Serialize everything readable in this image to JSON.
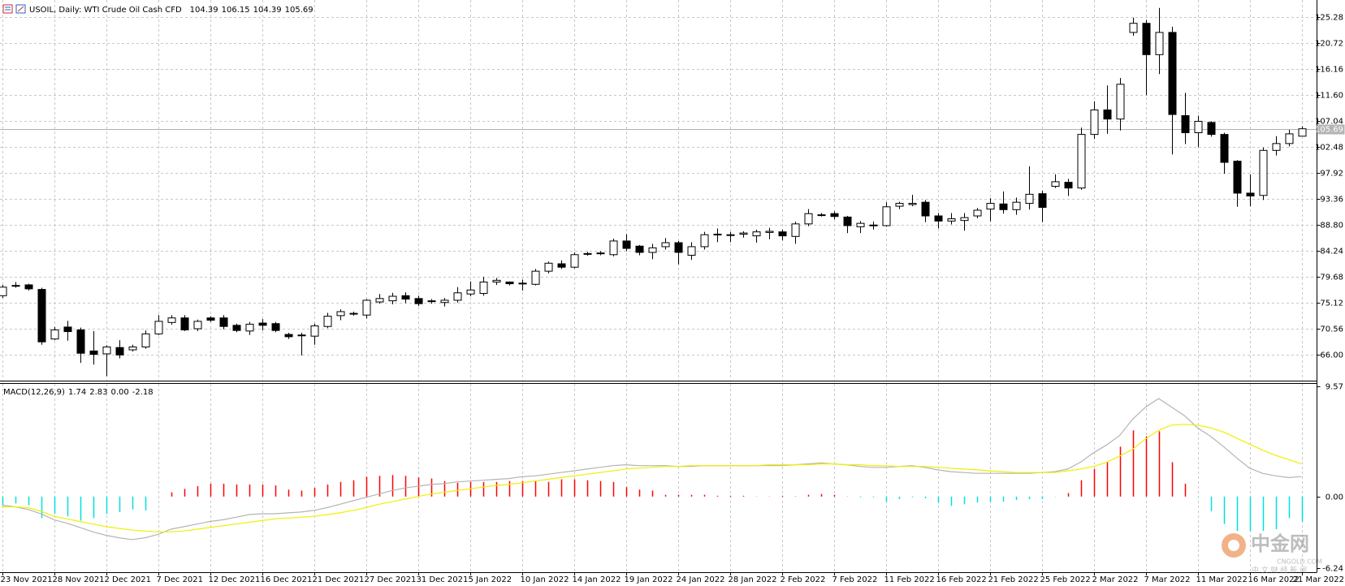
{
  "chart_data": [
    {
      "type": "candlestick",
      "title": "USOIL, Daily: WTI Crude Oil Cash CFD",
      "categories": [
        "23 Nov 2021",
        null,
        null,
        null,
        "28 Nov 2021",
        null,
        null,
        null,
        "2 Dec 2021",
        null,
        null,
        null,
        "7 Dec 2021",
        null,
        null,
        null,
        "12 Dec 2021",
        null,
        null,
        null,
        "16 Dec 2021",
        null,
        null,
        null,
        "21 Dec 2021",
        null,
        null,
        null,
        "27 Dec 2021",
        null,
        null,
        null,
        "31 Dec 2021",
        null,
        null,
        null,
        "5 Jan 2022",
        null,
        null,
        null,
        "10 Jan 2022",
        null,
        null,
        null,
        "14 Jan 2022",
        null,
        null,
        null,
        "19 Jan 2022",
        null,
        null,
        null,
        "24 Jan 2022",
        null,
        null,
        null,
        "28 Jan 2022",
        null,
        null,
        null,
        "2 Feb 2022",
        null,
        null,
        null,
        "7 Feb 2022",
        null,
        null,
        null,
        "11 Feb 2022",
        null,
        null,
        null,
        "16 Feb 2022",
        null,
        null,
        null,
        "21 Feb 2022",
        null,
        null,
        null,
        "25 Feb 2022",
        null,
        null,
        null,
        "2 Mar 2022",
        null,
        null,
        null,
        "7 Mar 2022",
        null,
        null,
        null,
        "11 Mar 2022",
        null,
        null,
        null,
        "16 Mar 2022",
        null,
        null,
        null,
        "21 Mar 2022"
      ],
      "open": [
        76.4,
        78.1,
        78.3,
        77.5,
        68.8,
        70.9,
        70.4,
        66.7,
        66.2,
        67.3,
        66.9,
        67.4,
        69.7,
        71.7,
        72.5,
        70.6,
        72.5,
        72.5,
        71.2,
        70.2,
        71.6,
        71.5,
        69.6,
        69.4,
        69.3,
        71.0,
        72.9,
        73.2,
        73.0,
        75.3,
        75.5,
        76.4,
        75.9,
        75.5,
        75.2,
        75.6,
        76.7,
        76.8,
        78.8,
        78.8,
        78.5,
        78.4,
        80.7,
        82.0,
        81.4,
        83.7,
        83.8,
        83.6,
        86.0,
        85.1,
        84.0,
        85.0,
        85.7,
        83.5,
        85.0,
        87.1,
        87.0,
        87.2,
        86.9,
        87.5,
        87.6,
        86.8,
        89.0,
        90.5,
        90.8,
        90.2,
        88.5,
        88.7,
        88.7,
        92.1,
        92.4,
        92.8,
        90.4,
        89.5,
        89.6,
        90.4,
        91.6,
        92.5,
        91.5,
        92.6,
        94.3,
        95.6,
        96.3,
        95.3,
        104.7,
        109.0,
        107.4,
        122.6,
        124.2,
        118.7,
        122.6,
        108.0,
        105.0,
        106.8,
        104.7,
        100.0,
        94.4,
        94.0,
        101.9,
        103.1,
        104.39
      ],
      "high": [
        78.3,
        78.8,
        78.5,
        77.8,
        70.9,
        72.0,
        70.8,
        70.2,
        67.7,
        68.6,
        67.8,
        70.3,
        73.0,
        73.0,
        73.0,
        72.2,
        72.8,
        73.0,
        71.5,
        71.8,
        72.3,
        71.8,
        69.9,
        69.9,
        71.5,
        73.4,
        74.0,
        73.6,
        75.8,
        76.7,
        76.9,
        77.0,
        76.4,
        75.8,
        76.0,
        77.9,
        78.9,
        79.7,
        79.5,
        78.9,
        79.2,
        81.1,
        82.4,
        82.6,
        84.0,
        84.1,
        84.2,
        86.4,
        87.2,
        85.3,
        85.5,
        86.5,
        86.0,
        85.8,
        87.6,
        88.2,
        87.6,
        87.7,
        88.0,
        88.3,
        88.0,
        89.4,
        91.6,
        90.9,
        91.2,
        90.4,
        89.5,
        89.4,
        92.8,
        92.9,
        94.1,
        93.2,
        90.9,
        90.9,
        90.9,
        91.8,
        93.5,
        94.7,
        93.6,
        99.1,
        94.8,
        97.7,
        96.9,
        105.9,
        110.5,
        113.3,
        114.6,
        125.2,
        124.8,
        126.9,
        123.6,
        112.0,
        108.0,
        107.0,
        105.0,
        100.2,
        97.7,
        102.4,
        104.4,
        105.5,
        106.15
      ],
      "low": [
        76.0,
        77.8,
        77.3,
        67.8,
        68.6,
        68.5,
        64.6,
        64.3,
        62.3,
        65.4,
        66.6,
        67.1,
        69.5,
        71.3,
        70.2,
        70.2,
        71.8,
        70.5,
        70.0,
        69.5,
        70.3,
        70.0,
        68.8,
        65.9,
        67.8,
        70.7,
        72.1,
        72.9,
        72.4,
        75.0,
        74.9,
        75.1,
        74.6,
        75.0,
        74.5,
        75.2,
        76.3,
        76.4,
        78.3,
        78.2,
        77.3,
        78.2,
        80.3,
        81.1,
        81.2,
        83.4,
        83.5,
        83.3,
        84.2,
        83.5,
        82.8,
        84.5,
        81.9,
        82.7,
        84.5,
        85.8,
        85.8,
        86.6,
        85.7,
        86.3,
        86.1,
        85.5,
        88.6,
        90.3,
        89.8,
        87.4,
        87.4,
        88.0,
        88.5,
        91.6,
        92.1,
        89.3,
        88.2,
        88.9,
        87.8,
        90.0,
        89.4,
        90.8,
        90.6,
        91.5,
        89.3,
        95.3,
        93.9,
        95.0,
        103.9,
        104.8,
        105.4,
        122.0,
        111.6,
        115.3,
        101.2,
        103.0,
        102.5,
        104.3,
        97.8,
        92.0,
        92.1,
        93.2,
        101.0,
        102.6,
        104.39
      ],
      "close": [
        77.9,
        78.2,
        77.6,
        68.3,
        70.4,
        70.1,
        66.3,
        66.1,
        67.4,
        66.0,
        67.4,
        69.7,
        71.9,
        72.5,
        70.4,
        71.9,
        72.1,
        71.0,
        70.3,
        71.4,
        71.2,
        70.3,
        69.2,
        69.5,
        71.1,
        72.8,
        73.6,
        73.3,
        75.6,
        75.9,
        76.3,
        75.8,
        75.0,
        75.4,
        75.6,
        76.9,
        77.4,
        78.8,
        79.1,
        78.5,
        78.6,
        80.7,
        82.1,
        81.4,
        83.6,
        83.8,
        83.9,
        86.0,
        84.7,
        84.0,
        84.8,
        85.7,
        84.0,
        85.0,
        87.1,
        87.2,
        87.1,
        87.4,
        87.6,
        87.7,
        86.9,
        89.0,
        90.8,
        90.6,
        90.3,
        88.7,
        89.1,
        88.8,
        92.0,
        92.6,
        92.6,
        90.4,
        89.5,
        89.9,
        90.1,
        91.4,
        92.6,
        91.5,
        92.8,
        94.2,
        91.9,
        96.4,
        95.3,
        104.7,
        109.0,
        107.4,
        113.5,
        124.2,
        118.7,
        122.6,
        108.2,
        105.0,
        107.0,
        104.7,
        99.8,
        94.4,
        93.9,
        101.9,
        103.1,
        104.8,
        105.69
      ],
      "up_color": "#ffffff",
      "down_color": "#000000",
      "outline_color": "#000000",
      "ylim": [
        61.49,
        128.29
      ],
      "yticks": [
        {
          "value": 66,
          "label": "66.00"
        },
        70.56,
        75.12,
        79.68,
        84.24,
        {
          "value": 88.8,
          "label": "88.80"
        },
        93.36,
        97.92,
        102.48,
        107.04,
        {
          "value": 111.6,
          "label": "111.60"
        },
        116.16,
        120.72,
        125.28
      ],
      "grid": true,
      "last_price_line": true
    },
    {
      "type": "macd",
      "title": "MACD(12,26,9)",
      "readout": [
        "1.74",
        "2.83",
        "0.00",
        "-2.18"
      ],
      "ylim": [
        -6.58,
        9.87
      ],
      "yticks": [
        -6.24,
        {
          "value": 0,
          "label": "0.00"
        },
        9.57
      ],
      "series": [
        {
          "kind": "histogram",
          "up_color": "#ff0000",
          "down_color": "#00e0e0",
          "values": [
            -0.75,
            -0.6,
            -0.75,
            -1.87,
            -1.5,
            -1.72,
            -2.09,
            -1.87,
            -1.5,
            -1.35,
            -1.12,
            -1.2,
            0,
            0.37,
            0.67,
            0.9,
            1.12,
            1.12,
            1.05,
            1.05,
            1.05,
            0.97,
            0.6,
            0.52,
            0.75,
            1.05,
            1.27,
            1.42,
            1.72,
            1.8,
            1.87,
            1.8,
            1.65,
            1.57,
            1.35,
            1.2,
            1.27,
            1.27,
            1.27,
            1.35,
            1.35,
            1.35,
            1.27,
            1.5,
            1.5,
            1.42,
            1.35,
            1.27,
            0.82,
            0.6,
            0.52,
            0.15,
            0.15,
            0.15,
            0.15,
            0.07,
            0.07,
            0.07,
            0.02,
            0.02,
            0.07,
            0.03,
            0.15,
            0.22,
            0.15,
            0.02,
            -0.07,
            -0.07,
            -0.45,
            -0.22,
            -0.07,
            -0.15,
            -0.52,
            -0.82,
            -0.67,
            -0.52,
            -0.45,
            -0.45,
            -0.3,
            -0.22,
            -0.22,
            -0.03,
            0.3,
            1.42,
            2.39,
            2.99,
            4.34,
            5.76,
            5.24,
            5.68,
            2.99,
            1.12,
            -0.02,
            -1.27,
            -2.39,
            -2.99,
            -2.99,
            -2.99,
            -2.84,
            -1.87,
            -2.18
          ]
        },
        {
          "kind": "line",
          "color": "#b4b4b4",
          "values": [
            -0.75,
            -0.9,
            -1.12,
            -1.5,
            -2.02,
            -2.32,
            -2.69,
            -3.07,
            -3.37,
            -3.59,
            -3.74,
            -3.59,
            -3.29,
            -2.84,
            -2.62,
            -2.39,
            -2.17,
            -2.02,
            -1.8,
            -1.57,
            -1.5,
            -1.5,
            -1.42,
            -1.35,
            -1.2,
            -0.97,
            -0.67,
            -0.37,
            -0.07,
            0.22,
            0.52,
            0.75,
            0.9,
            1.05,
            1.12,
            1.27,
            1.35,
            1.42,
            1.5,
            1.57,
            1.72,
            1.8,
            1.94,
            2.09,
            2.24,
            2.39,
            2.54,
            2.69,
            2.77,
            2.69,
            2.69,
            2.69,
            2.62,
            2.62,
            2.69,
            2.69,
            2.69,
            2.69,
            2.69,
            2.69,
            2.69,
            2.77,
            2.84,
            2.92,
            2.84,
            2.77,
            2.62,
            2.54,
            2.54,
            2.62,
            2.69,
            2.54,
            2.32,
            2.17,
            2.09,
            2.02,
            2.02,
            2.02,
            2.02,
            2.02,
            2.09,
            2.17,
            2.39,
            2.99,
            3.81,
            4.49,
            5.31,
            6.73,
            7.78,
            8.53,
            7.78,
            7.03,
            5.98,
            5.24,
            4.34,
            3.37,
            2.47,
            2.02,
            1.8,
            1.65,
            1.74
          ]
        },
        {
          "kind": "line",
          "color": "#f0f000",
          "values": [
            -0.9,
            -0.9,
            -0.97,
            -1.27,
            -1.72,
            -1.94,
            -2.17,
            -2.39,
            -2.62,
            -2.77,
            -2.92,
            -2.99,
            -3.07,
            -3.07,
            -2.99,
            -2.84,
            -2.69,
            -2.54,
            -2.39,
            -2.24,
            -2.09,
            -1.94,
            -1.87,
            -1.8,
            -1.72,
            -1.57,
            -1.42,
            -1.2,
            -0.97,
            -0.67,
            -0.45,
            -0.22,
            0,
            0.22,
            0.37,
            0.52,
            0.67,
            0.82,
            0.97,
            1.05,
            1.2,
            1.35,
            1.5,
            1.65,
            1.8,
            1.94,
            2.09,
            2.24,
            2.39,
            2.47,
            2.54,
            2.62,
            2.62,
            2.69,
            2.69,
            2.69,
            2.69,
            2.69,
            2.69,
            2.77,
            2.77,
            2.77,
            2.77,
            2.84,
            2.84,
            2.77,
            2.77,
            2.69,
            2.69,
            2.62,
            2.62,
            2.62,
            2.54,
            2.47,
            2.39,
            2.32,
            2.24,
            2.17,
            2.09,
            2.09,
            2.09,
            2.09,
            2.24,
            2.39,
            2.62,
            2.99,
            3.52,
            4.11,
            5.01,
            5.76,
            6.21,
            6.28,
            6.21,
            5.98,
            5.61,
            5.09,
            4.56,
            4.04,
            3.59,
            3.22,
            2.83
          ]
        }
      ]
    }
  ],
  "watermark": {
    "name": "中金网",
    "site": "CNGOLD.COM",
    "tagline": "中 文 财 经 新 闻"
  }
}
